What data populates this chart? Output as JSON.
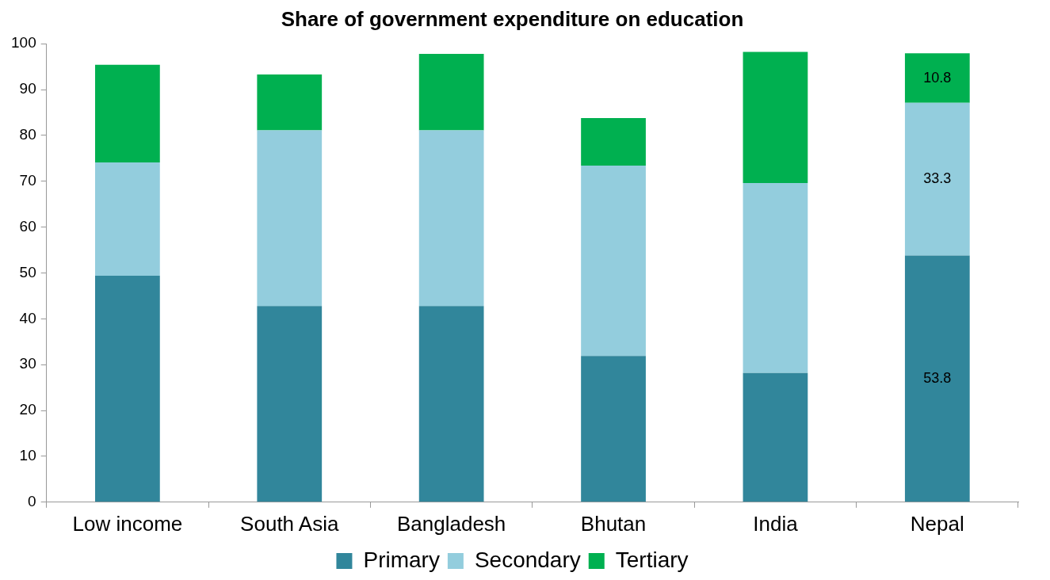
{
  "chart_data": {
    "type": "bar",
    "title": "Share of government expenditure on education",
    "categories": [
      "Low income",
      "South Asia",
      "Bangladesh",
      "Bhutan",
      "India",
      "Nepal"
    ],
    "series": [
      {
        "name": "Primary",
        "color": "#31869b",
        "values": [
          49.4,
          42.8,
          42.8,
          31.9,
          28.2,
          53.8
        ],
        "value_labels": [
          null,
          null,
          null,
          null,
          null,
          "53.8"
        ]
      },
      {
        "name": "Secondary",
        "color": "#93cddd",
        "values": [
          24.7,
          38.3,
          38.3,
          41.5,
          41.4,
          33.3
        ],
        "value_labels": [
          null,
          null,
          null,
          null,
          null,
          "33.3"
        ]
      },
      {
        "name": "Tertiary",
        "color": "#00b050",
        "values": [
          21.3,
          12.2,
          16.7,
          10.4,
          28.6,
          10.8
        ],
        "value_labels": [
          null,
          null,
          null,
          null,
          null,
          "10.8"
        ]
      }
    ],
    "stacked": true,
    "ylim": [
      0,
      100
    ],
    "yticks": [
      0,
      10,
      20,
      30,
      40,
      50,
      60,
      70,
      80,
      90,
      100
    ],
    "grid": false,
    "legend": "bottom"
  }
}
